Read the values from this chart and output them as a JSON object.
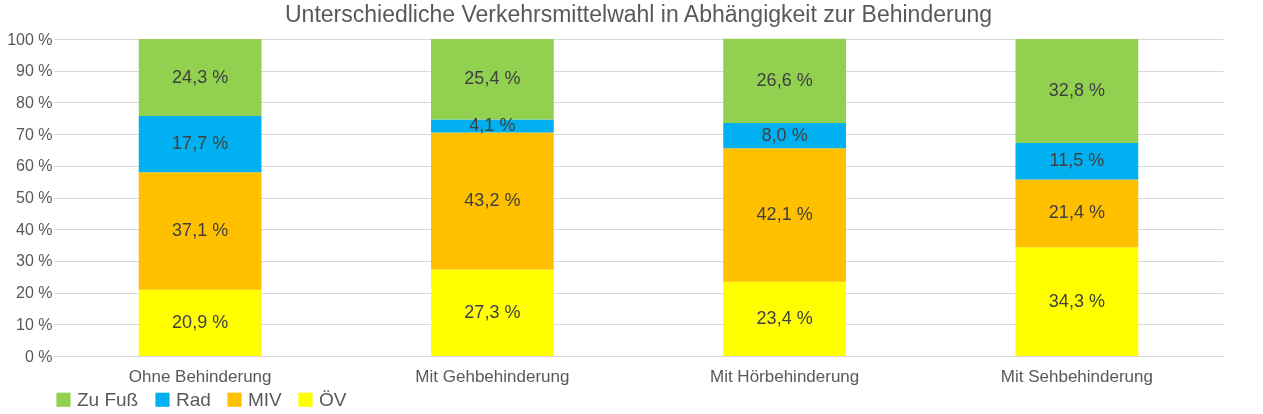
{
  "chart_data": {
    "type": "bar",
    "stacked": true,
    "title": "Unterschiedliche Verkehrsmittelwahl in Abhängigkeit zur Behinderung",
    "categories": [
      "Ohne Behinderung",
      "Mit Gehbehinderung",
      "Mit Hörbehinderung",
      "Mit Sehbehinderung"
    ],
    "series": [
      {
        "name": "ÖV",
        "color": "#ffff00",
        "values": [
          20.9,
          27.3,
          23.4,
          34.3
        ],
        "value_labels": [
          "20,9 %",
          "27,3 %",
          "23,4 %",
          "34,3 %"
        ]
      },
      {
        "name": "MIV",
        "color": "#ffc000",
        "values": [
          37.1,
          43.2,
          42.1,
          21.4
        ],
        "value_labels": [
          "37,1 %",
          "43,2 %",
          "42,1 %",
          "21,4 %"
        ]
      },
      {
        "name": "Rad",
        "color": "#00b0f0",
        "values": [
          17.7,
          4.1,
          8.0,
          11.5
        ],
        "value_labels": [
          "17,7 %",
          "4,1 %",
          "8,0 %",
          "11,5 %"
        ]
      },
      {
        "name": "Zu Fuß",
        "color": "#92d050",
        "values": [
          24.3,
          25.4,
          26.6,
          32.8
        ],
        "value_labels": [
          "24,3 %",
          "25,4 %",
          "26,6 %",
          "32,8 %"
        ]
      }
    ],
    "ylim": [
      0,
      100
    ],
    "yticks": [
      {
        "value": 0,
        "label": "0 %"
      },
      {
        "value": 10,
        "label": "10 %"
      },
      {
        "value": 20,
        "label": "20 %"
      },
      {
        "value": 30,
        "label": "30 %"
      },
      {
        "value": 40,
        "label": "40 %"
      },
      {
        "value": 50,
        "label": "50 %"
      },
      {
        "value": 60,
        "label": "60 %"
      },
      {
        "value": 70,
        "label": "70 %"
      },
      {
        "value": 80,
        "label": "80 %"
      },
      {
        "value": 90,
        "label": "90 %"
      },
      {
        "value": 100,
        "label": "100 %"
      }
    ],
    "grid": "y",
    "legend": "bottom"
  }
}
